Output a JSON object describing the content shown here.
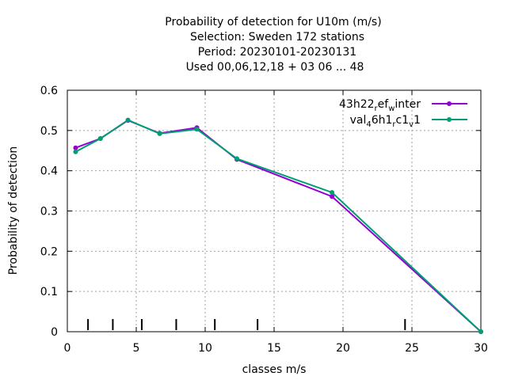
{
  "chart_data": {
    "type": "line",
    "title_lines": [
      "Probability of detection  for U10m (m/s)",
      "Selection: Sweden    172 stations",
      "Period: 20230101-20230131",
      "Used  00,06,12,18  + 03 06 ... 48"
    ],
    "xlabel": "classes m/s",
    "ylabel": "Probability of detection",
    "xlim": [
      0,
      30
    ],
    "ylim": [
      0,
      0.6
    ],
    "xticks": [
      0,
      5,
      10,
      15,
      20,
      25,
      30
    ],
    "yticks": [
      0,
      0.1,
      0.2,
      0.3,
      0.4,
      0.5,
      0.6
    ],
    "grid": true,
    "legend_position": "top-right",
    "class_boundary_marks": [
      1.5,
      3.3,
      5.4,
      7.9,
      10.7,
      13.8,
      24.5
    ],
    "series": [
      {
        "name": "43h22_ref_winter",
        "legend_parts": [
          {
            "text": "43h22",
            "sub": false
          },
          {
            "text": "r",
            "sub": true
          },
          {
            "text": "ef",
            "sub": false
          },
          {
            "text": "w",
            "sub": true
          },
          {
            "text": "inter",
            "sub": false
          }
        ],
        "color": "#9400d3",
        "x": [
          0.6,
          2.4,
          4.4,
          6.7,
          9.4,
          12.3,
          19.2,
          30
        ],
        "y": [
          0.457,
          0.48,
          0.525,
          0.493,
          0.507,
          0.428,
          0.336,
          0.0
        ]
      },
      {
        "name": "val_46h1_rc1_v1",
        "legend_parts": [
          {
            "text": "val",
            "sub": false
          },
          {
            "text": "4",
            "sub": true
          },
          {
            "text": "6h1",
            "sub": false
          },
          {
            "text": "r",
            "sub": true
          },
          {
            "text": "c1",
            "sub": false
          },
          {
            "text": "v",
            "sub": true
          },
          {
            "text": "1",
            "sub": false
          }
        ],
        "color": "#009e73",
        "x": [
          0.6,
          2.4,
          4.4,
          6.7,
          9.4,
          12.3,
          19.2,
          30
        ],
        "y": [
          0.447,
          0.48,
          0.526,
          0.492,
          0.503,
          0.43,
          0.346,
          0.0
        ]
      }
    ]
  }
}
